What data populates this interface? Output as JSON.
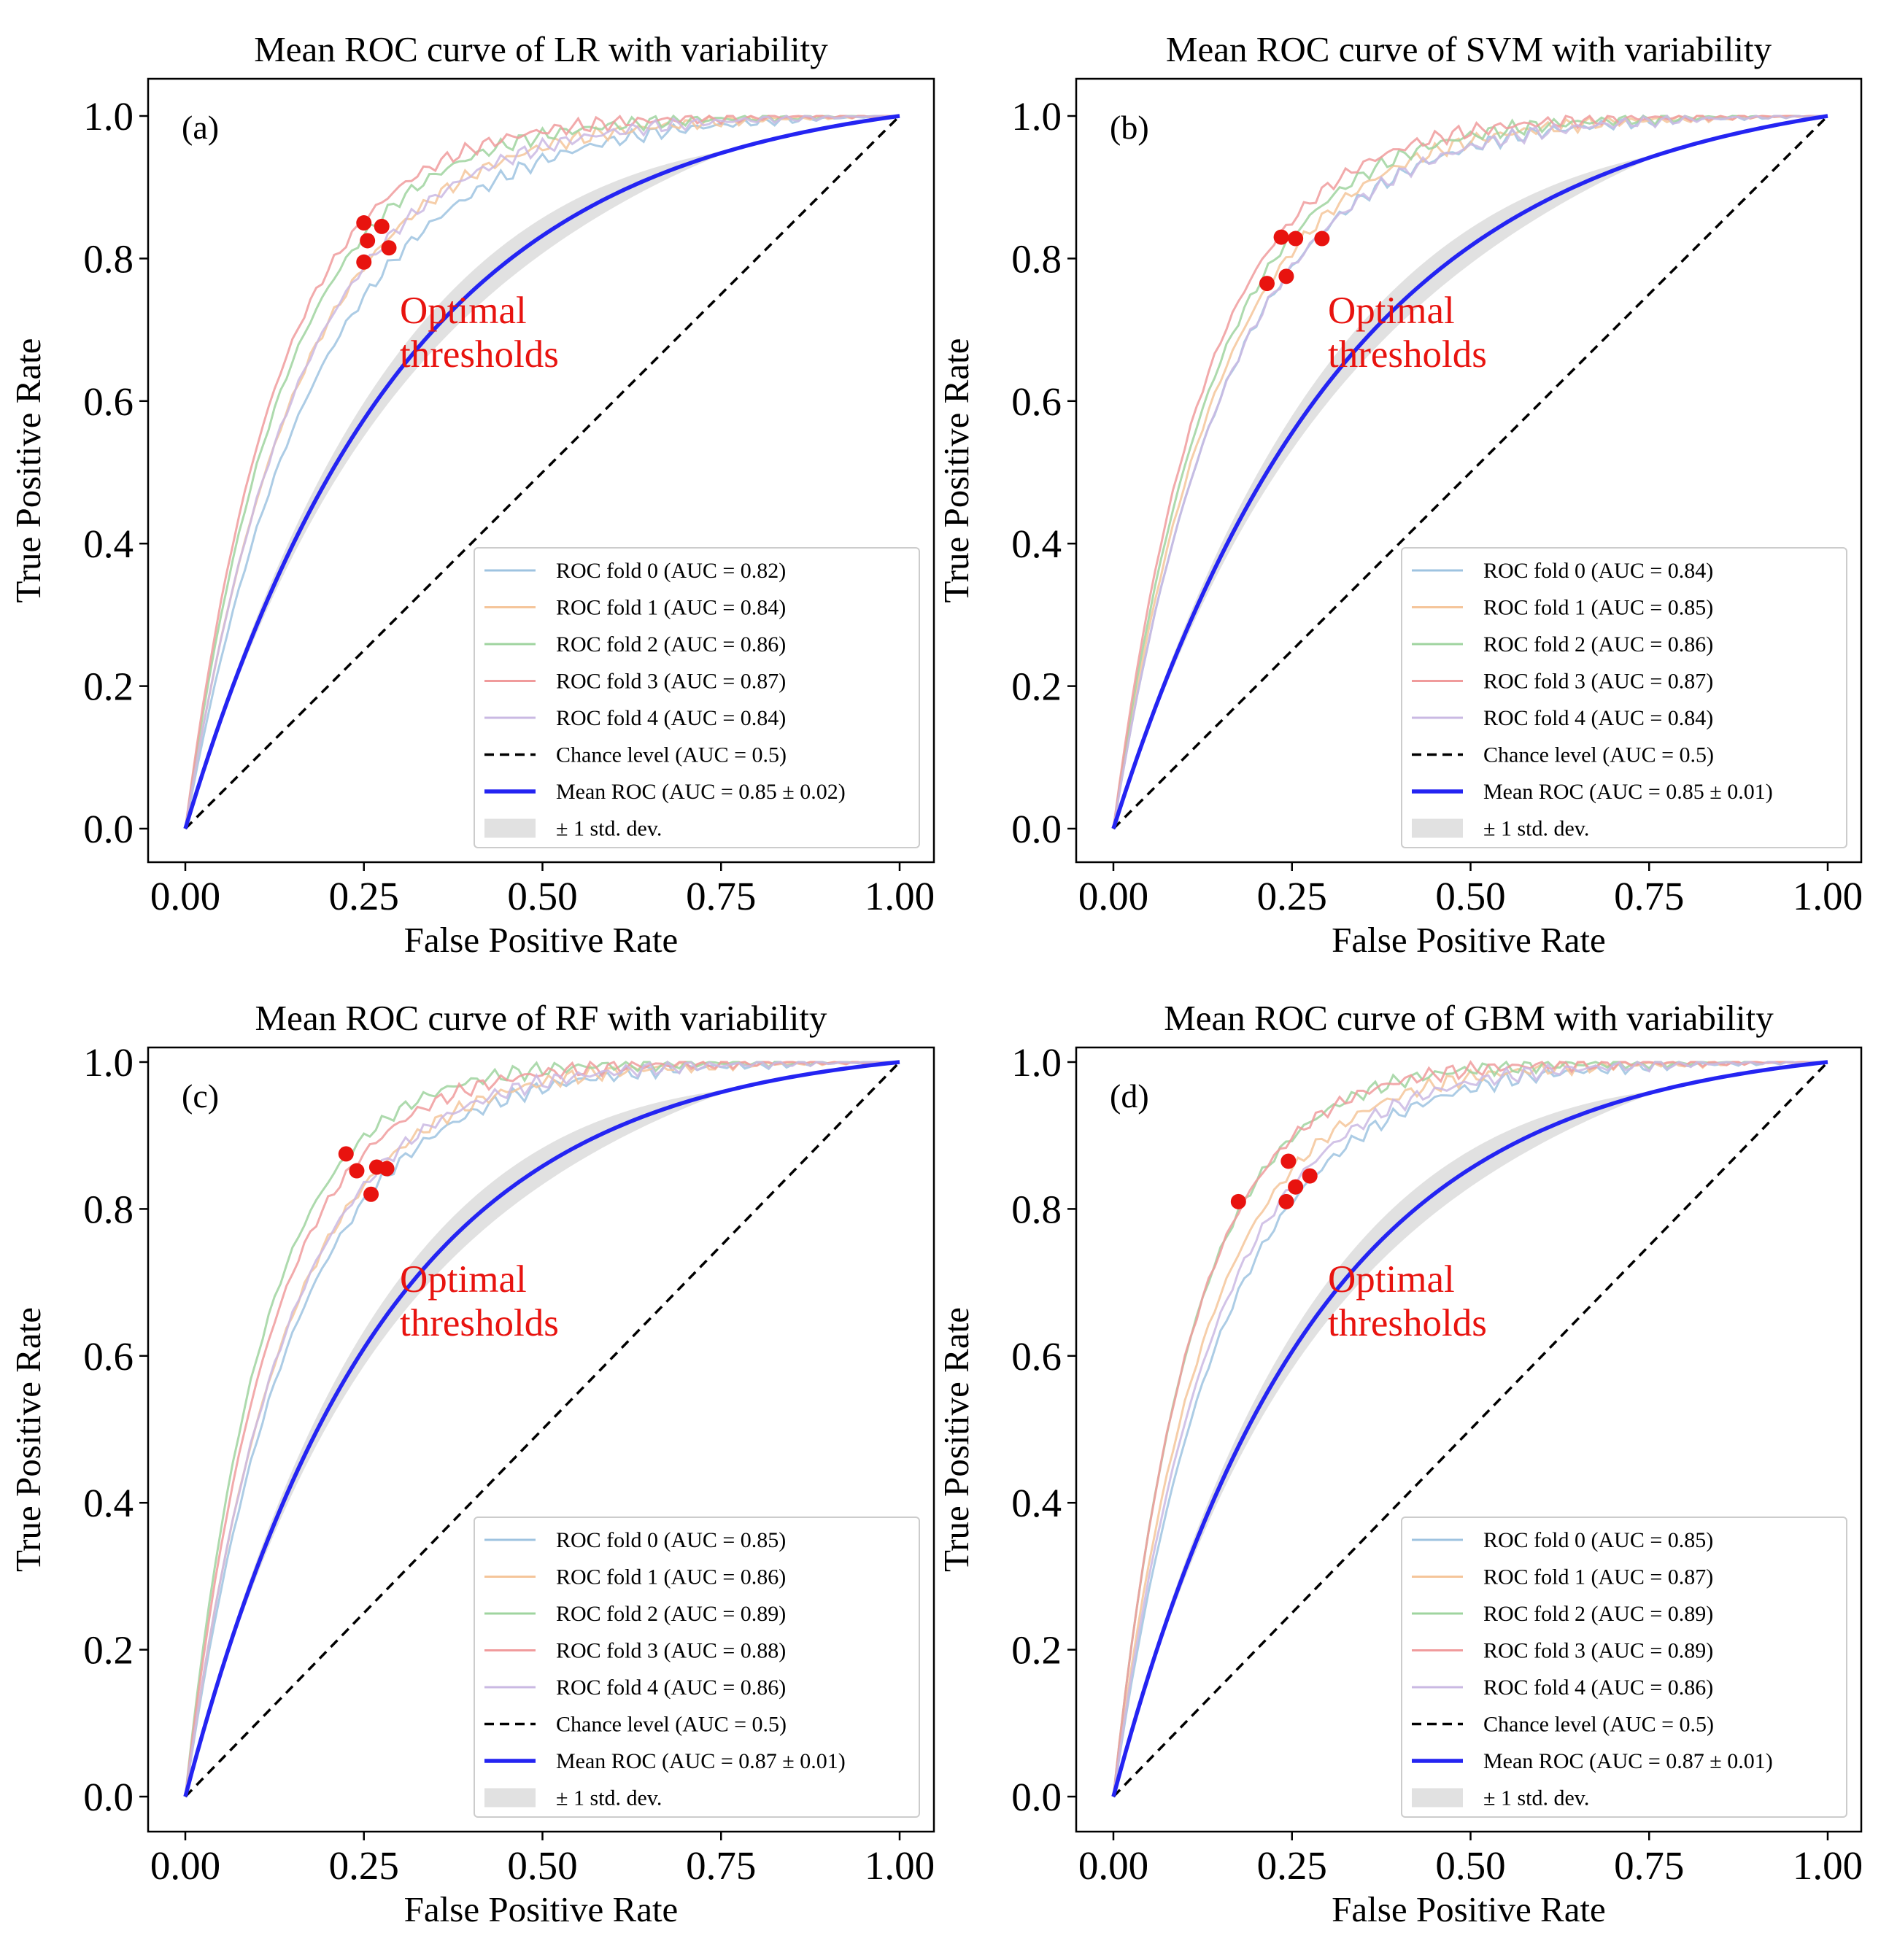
{
  "figure": {
    "layout": "2x2 grid",
    "background": "#ffffff",
    "colors": {
      "mean_roc": "#2424f2",
      "chance": "#000000",
      "optimal_point": "#e8130f",
      "annotation": "#e8130f",
      "std_band": "#c8c8c8",
      "fold_colors": [
        "#9ec3e0",
        "#f5c59a",
        "#9fd49f",
        "#f09b9c",
        "#cab9e3"
      ]
    }
  },
  "chart_data": [
    {
      "type": "line",
      "panel_label": "(a)",
      "title": "Mean ROC curve of LR with variability",
      "xlabel": "False Positive Rate",
      "ylabel": "True Positive Rate",
      "xlim": [
        0,
        1
      ],
      "ylim": [
        0,
        1
      ],
      "xticks": [
        "0.00",
        "0.25",
        "0.50",
        "0.75",
        "1.00"
      ],
      "yticks": [
        "0.0",
        "0.2",
        "0.4",
        "0.6",
        "0.8",
        "1.0"
      ],
      "annotation": [
        "Optimal",
        "thresholds"
      ],
      "mean_curve_k": 3.2,
      "series": [
        {
          "name": "ROC fold 0",
          "auc": 0.82,
          "legend": "ROC fold 0 (AUC = 0.82)"
        },
        {
          "name": "ROC fold 1",
          "auc": 0.84,
          "legend": "ROC fold 1 (AUC = 0.84)"
        },
        {
          "name": "ROC fold 2",
          "auc": 0.86,
          "legend": "ROC fold 2 (AUC = 0.86)"
        },
        {
          "name": "ROC fold 3",
          "auc": 0.87,
          "legend": "ROC fold 3 (AUC = 0.87)"
        },
        {
          "name": "ROC fold 4",
          "auc": 0.84,
          "legend": "ROC fold 4 (AUC = 0.84)"
        }
      ],
      "chance_legend": "Chance level (AUC = 0.5)",
      "mean_legend": "Mean ROC (AUC = 0.85 ± 0.02)",
      "std_legend": "± 1 std. dev.",
      "optimal_points": [
        [
          0.25,
          0.85
        ],
        [
          0.275,
          0.845
        ],
        [
          0.255,
          0.825
        ],
        [
          0.285,
          0.815
        ],
        [
          0.25,
          0.795
        ]
      ]
    },
    {
      "type": "line",
      "panel_label": "(b)",
      "title": "Mean ROC curve of SVM with variability",
      "xlabel": "False Positive Rate",
      "ylabel": "True Positive Rate",
      "xlim": [
        0,
        1
      ],
      "ylim": [
        0,
        1
      ],
      "xticks": [
        "0.00",
        "0.25",
        "0.50",
        "0.75",
        "1.00"
      ],
      "yticks": [
        "0.0",
        "0.2",
        "0.4",
        "0.6",
        "0.8",
        "1.0"
      ],
      "annotation": [
        "Optimal",
        "thresholds"
      ],
      "mean_curve_k": 3.0,
      "series": [
        {
          "name": "ROC fold 0",
          "auc": 0.84,
          "legend": "ROC fold 0 (AUC = 0.84)"
        },
        {
          "name": "ROC fold 1",
          "auc": 0.85,
          "legend": "ROC fold 1 (AUC = 0.85)"
        },
        {
          "name": "ROC fold 2",
          "auc": 0.86,
          "legend": "ROC fold 2 (AUC = 0.86)"
        },
        {
          "name": "ROC fold 3",
          "auc": 0.87,
          "legend": "ROC fold 3 (AUC = 0.87)"
        },
        {
          "name": "ROC fold 4",
          "auc": 0.84,
          "legend": "ROC fold 4 (AUC = 0.84)"
        }
      ],
      "chance_legend": "Chance level (AUC = 0.5)",
      "mean_legend": "Mean ROC (AUC = 0.85 ± 0.01)",
      "std_legend": "± 1 std. dev.",
      "optimal_points": [
        [
          0.235,
          0.83
        ],
        [
          0.255,
          0.828
        ],
        [
          0.292,
          0.828
        ],
        [
          0.215,
          0.765
        ],
        [
          0.242,
          0.775
        ]
      ]
    },
    {
      "type": "line",
      "panel_label": "(c)",
      "title": "Mean ROC curve of RF with variability",
      "xlabel": "False Positive Rate",
      "ylabel": "True Positive Rate",
      "xlim": [
        0,
        1
      ],
      "ylim": [
        0,
        1
      ],
      "xticks": [
        "0.00",
        "0.25",
        "0.50",
        "0.75",
        "1.00"
      ],
      "yticks": [
        "0.0",
        "0.2",
        "0.4",
        "0.6",
        "0.8",
        "1.0"
      ],
      "annotation": [
        "Optimal",
        "thresholds"
      ],
      "mean_curve_k": 3.6,
      "series": [
        {
          "name": "ROC fold 0",
          "auc": 0.85,
          "legend": "ROC fold 0 (AUC = 0.85)"
        },
        {
          "name": "ROC fold 1",
          "auc": 0.86,
          "legend": "ROC fold 1 (AUC = 0.86)"
        },
        {
          "name": "ROC fold 2",
          "auc": 0.89,
          "legend": "ROC fold 2 (AUC = 0.89)"
        },
        {
          "name": "ROC fold 3",
          "auc": 0.88,
          "legend": "ROC fold 3 (AUC = 0.88)"
        },
        {
          "name": "ROC fold 4",
          "auc": 0.86,
          "legend": "ROC fold 4 (AUC = 0.86)"
        }
      ],
      "chance_legend": "Chance level (AUC = 0.5)",
      "mean_legend": "Mean ROC (AUC = 0.87 ± 0.01)",
      "std_legend": "± 1 std. dev.",
      "optimal_points": [
        [
          0.225,
          0.875
        ],
        [
          0.24,
          0.852
        ],
        [
          0.268,
          0.857
        ],
        [
          0.282,
          0.855
        ],
        [
          0.26,
          0.82
        ]
      ]
    },
    {
      "type": "line",
      "panel_label": "(d)",
      "title": "Mean ROC curve of GBM with variability",
      "xlabel": "False Positive Rate",
      "ylabel": "True Positive Rate",
      "xlim": [
        0,
        1
      ],
      "ylim": [
        0,
        1
      ],
      "xticks": [
        "0.00",
        "0.25",
        "0.50",
        "0.75",
        "1.00"
      ],
      "yticks": [
        "0.0",
        "0.2",
        "0.4",
        "0.6",
        "0.8",
        "1.0"
      ],
      "annotation": [
        "Optimal",
        "thresholds"
      ],
      "mean_curve_k": 3.55,
      "series": [
        {
          "name": "ROC fold 0",
          "auc": 0.85,
          "legend": "ROC fold 0 (AUC = 0.85)"
        },
        {
          "name": "ROC fold 1",
          "auc": 0.87,
          "legend": "ROC fold 1 (AUC = 0.87)"
        },
        {
          "name": "ROC fold 2",
          "auc": 0.89,
          "legend": "ROC fold 2 (AUC = 0.89)"
        },
        {
          "name": "ROC fold 3",
          "auc": 0.89,
          "legend": "ROC fold 3 (AUC = 0.89)"
        },
        {
          "name": "ROC fold 4",
          "auc": 0.86,
          "legend": "ROC fold 4 (AUC = 0.86)"
        }
      ],
      "chance_legend": "Chance level (AUC = 0.5)",
      "mean_legend": "Mean ROC (AUC = 0.87 ± 0.01)",
      "std_legend": "± 1 std. dev.",
      "optimal_points": [
        [
          0.175,
          0.81
        ],
        [
          0.245,
          0.865
        ],
        [
          0.255,
          0.83
        ],
        [
          0.275,
          0.845
        ],
        [
          0.242,
          0.81
        ]
      ]
    }
  ]
}
